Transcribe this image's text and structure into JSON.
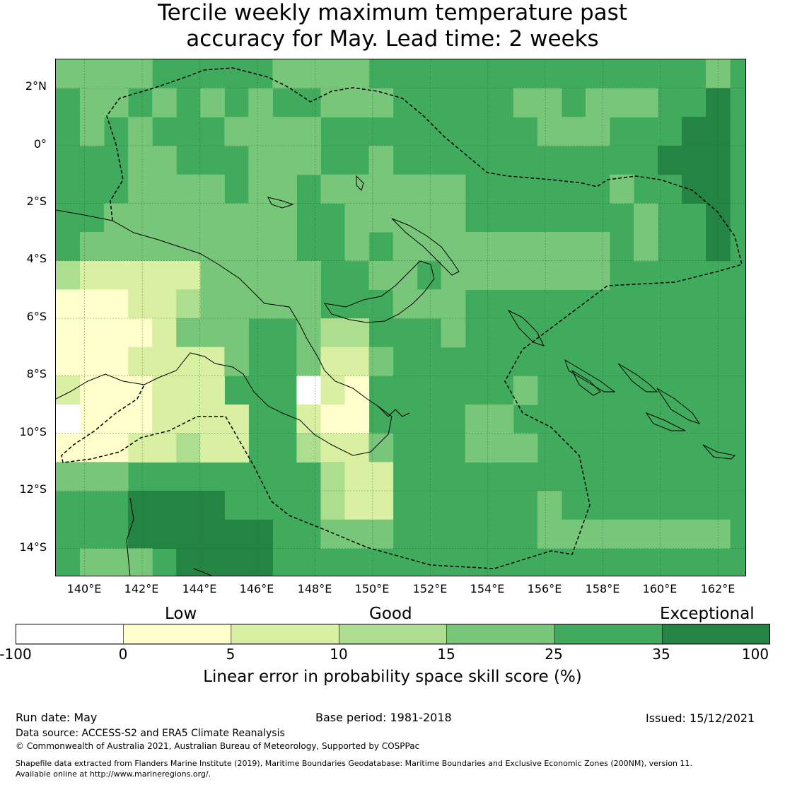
{
  "title": {
    "line1": "Tercile weekly maximum temperature past",
    "line2": "accuracy for May. Lead time: 2 weeks"
  },
  "map": {
    "lat_range": [
      -15,
      3
    ],
    "lon_range": [
      139,
      163
    ],
    "lat_ticks": [
      "2°N",
      "0°",
      "2°S",
      "4°S",
      "6°S",
      "8°S",
      "10°S",
      "12°S",
      "14°S"
    ],
    "lon_ticks": [
      "140°E",
      "142°E",
      "144°E",
      "146°E",
      "148°E",
      "150°E",
      "152°E",
      "154°E",
      "156°E",
      "158°E",
      "160°E",
      "162°E"
    ],
    "region_outline": "dashed EEZ boundary of Papua New Guinea"
  },
  "colorbar": {
    "categories": [
      "Low",
      "Good",
      "Exceptional"
    ],
    "bins": [
      {
        "from": -100,
        "to": 0,
        "color": "#ffffff"
      },
      {
        "from": 0,
        "to": 5,
        "color": "#ffffcc"
      },
      {
        "from": 5,
        "to": 10,
        "color": "#d9f0a3"
      },
      {
        "from": 10,
        "to": 15,
        "color": "#addd8e"
      },
      {
        "from": 15,
        "to": 25,
        "color": "#78c679"
      },
      {
        "from": 25,
        "to": 35,
        "color": "#41ab5d"
      },
      {
        "from": 35,
        "to": 100,
        "color": "#238443"
      }
    ],
    "tick_labels": [
      "-100",
      "0",
      "5",
      "10",
      "15",
      "25",
      "35",
      "100"
    ],
    "label": "Linear error in probability space skill score (%)"
  },
  "footer": {
    "run_date": "Run date: May",
    "base_period": "Base period: 1981-2018",
    "issued": "Issued: 15/12/2021",
    "data_source": "Data source: ACCESS-S2 and ERA5 Climate Reanalysis",
    "copyright": "© Commonwealth of Australia 2021, Australian Bureau of Meteorology, Supported by COSPPac",
    "shapefile_line1": "Shapefile data extracted from Flanders Marine Institute (2019), Maritime Boundaries Geodatabase: Maritime Boundaries and Exclusive Economic Zones (200NM), version 11.",
    "shapefile_line2": "Available online at http://www.marineregions.org/."
  }
}
